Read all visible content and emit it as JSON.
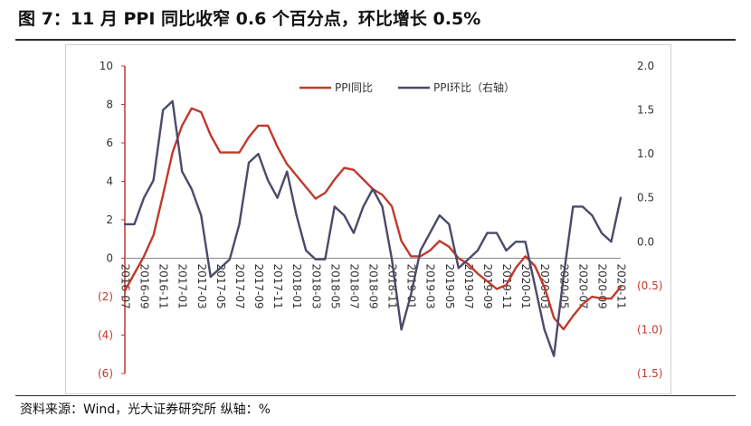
{
  "header": {
    "title": "图 7：11 月 PPI 同比收窄 0.6 个百分点，环比增长 0.5%"
  },
  "footer": {
    "source": "资料来源：Wind，光大证券研究所  纵轴：%"
  },
  "chart_data": {
    "type": "line",
    "x": [
      "2016-07",
      "2016-08",
      "2016-09",
      "2016-10",
      "2016-11",
      "2016-12",
      "2017-01",
      "2017-02",
      "2017-03",
      "2017-04",
      "2017-05",
      "2017-06",
      "2017-07",
      "2017-08",
      "2017-09",
      "2017-10",
      "2017-11",
      "2017-12",
      "2018-01",
      "2018-02",
      "2018-03",
      "2018-04",
      "2018-05",
      "2018-06",
      "2018-07",
      "2018-08",
      "2018-09",
      "2018-10",
      "2018-11",
      "2018-12",
      "2019-01",
      "2019-02",
      "2019-03",
      "2019-04",
      "2019-05",
      "2019-06",
      "2019-07",
      "2019-08",
      "2019-09",
      "2019-10",
      "2019-11",
      "2019-12",
      "2020-01",
      "2020-02",
      "2020-03",
      "2020-04",
      "2020-05",
      "2020-06",
      "2020-07",
      "2020-08",
      "2020-09",
      "2020-10",
      "2020-11"
    ],
    "x_tick_labels": [
      "2016-07",
      "2016-09",
      "2016-11",
      "2017-01",
      "2017-03",
      "2017-05",
      "2017-07",
      "2017-09",
      "2017-11",
      "2018-01",
      "2018-03",
      "2018-05",
      "2018-07",
      "2018-09",
      "2018-11",
      "2019-01",
      "2019-03",
      "2019-05",
      "2019-07",
      "2019-09",
      "2019-11",
      "2020-01",
      "2020-03",
      "2020-05",
      "2020-07",
      "2020-09",
      "2020-11"
    ],
    "y_left": {
      "ylim": [
        -6,
        10
      ],
      "ticks": [
        "10",
        "8",
        "6",
        "4",
        "2",
        "0",
        "(2)",
        "(4)",
        "(6)"
      ]
    },
    "y_right": {
      "ylim": [
        -1.5,
        2.0
      ],
      "ticks": [
        "2.0",
        "1.5",
        "1.0",
        "0.5",
        "0.0",
        "(0.5)",
        "(1.0)",
        "(1.5)"
      ]
    },
    "legend_position": "top-center",
    "colors": {
      "yoy": "#c0392b",
      "mom": "#4a4a6a",
      "left_axis": "#c0392b",
      "right_axis": "#c0392b"
    },
    "series": [
      {
        "name": "PPI同比",
        "axis": "left",
        "values": [
          -1.7,
          -0.8,
          0.1,
          1.2,
          3.3,
          5.5,
          6.9,
          7.8,
          7.6,
          6.4,
          5.5,
          5.5,
          5.5,
          6.3,
          6.9,
          6.9,
          5.8,
          4.9,
          4.3,
          3.7,
          3.1,
          3.4,
          4.1,
          4.7,
          4.6,
          4.1,
          3.6,
          3.3,
          2.7,
          0.9,
          0.1,
          0.1,
          0.4,
          0.9,
          0.6,
          0.0,
          -0.3,
          -0.8,
          -1.2,
          -1.6,
          -1.4,
          -0.5,
          0.1,
          -0.4,
          -1.5,
          -3.1,
          -3.7,
          -3.0,
          -2.4,
          -2.0,
          -2.1,
          -2.1,
          -1.5
        ]
      },
      {
        "name": "PPI环比（右轴）",
        "axis": "right",
        "values": [
          0.2,
          0.2,
          0.5,
          0.7,
          1.5,
          1.6,
          0.8,
          0.6,
          0.3,
          -0.4,
          -0.3,
          -0.2,
          0.2,
          0.9,
          1.0,
          0.7,
          0.5,
          0.8,
          0.3,
          -0.1,
          -0.2,
          -0.2,
          0.4,
          0.3,
          0.1,
          0.4,
          0.6,
          0.4,
          -0.2,
          -1.0,
          -0.6,
          -0.1,
          0.1,
          0.3,
          0.2,
          -0.3,
          -0.2,
          -0.1,
          0.1,
          0.1,
          -0.1,
          0.0,
          0.0,
          -0.5,
          -1.0,
          -1.3,
          -0.4,
          0.4,
          0.4,
          0.3,
          0.1,
          0.0,
          0.5
        ]
      }
    ]
  }
}
